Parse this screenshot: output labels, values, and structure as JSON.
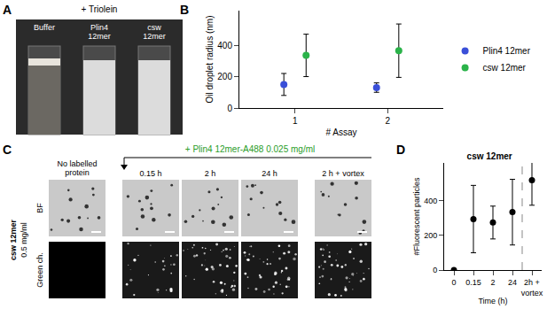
{
  "panel_labels": [
    "A",
    "B",
    "C",
    "D"
  ],
  "panel_a": {
    "header": "+ Triolein",
    "tubes": [
      "Buffer",
      "Plin4\n12mer",
      "csw\n12mer"
    ]
  },
  "panel_c": {
    "side_label": "csw 12mer",
    "side_sublabel": "0.5 mg/ml",
    "header": "+ Plin4 12mer-A488 0.025 mg/ml",
    "columns": [
      "No labelled\nprotein",
      "0.15 h",
      "2 h",
      "24 h",
      "2 h + vortex"
    ],
    "rows": [
      "BF",
      "Green ch."
    ]
  },
  "chart_data": [
    {
      "type": "scatter",
      "x_label": "# Assay",
      "y_label": "Oil droplet radius (nm)",
      "categories": [
        "1",
        "2"
      ],
      "series": [
        {
          "name": "Plin4 12mer",
          "color": "#3a4fd8",
          "values": [
            150,
            130
          ],
          "errors": [
            70,
            30
          ]
        },
        {
          "name": "csw 12mer",
          "color": "#2bb34a",
          "values": [
            335,
            365
          ],
          "errors": [
            135,
            170
          ]
        }
      ],
      "ylim": [
        0,
        620
      ],
      "yticks": [
        0,
        200,
        400
      ],
      "legend": "right",
      "marker": "circle"
    },
    {
      "type": "scatter",
      "title": "csw 12mer",
      "x_label": "Time (h)",
      "y_label": "#Fluorescent particles",
      "categories": [
        "0",
        "0.15",
        "2",
        "24",
        "2h +\nvortex"
      ],
      "values": [
        0,
        295,
        275,
        335,
        520
      ],
      "errors": [
        0,
        195,
        95,
        190,
        145
      ],
      "color": "#000000",
      "ylim": [
        0,
        620
      ],
      "yticks": [
        0,
        200,
        400
      ],
      "marker": "circle"
    }
  ]
}
